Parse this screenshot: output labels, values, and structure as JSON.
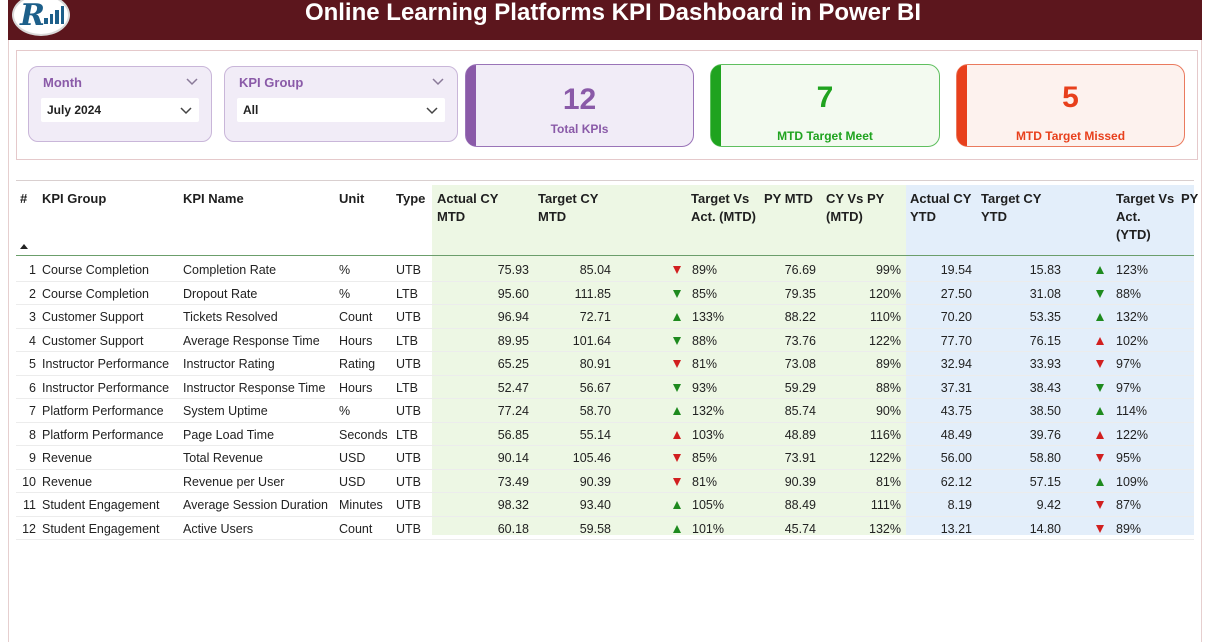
{
  "header": {
    "title": "Online Learning Platforms KPI Dashboard in Power BI",
    "logo_icon": "analytics-logo-icon"
  },
  "filters": {
    "month": {
      "label": "Month",
      "value": "July 2024"
    },
    "kpi_group": {
      "label": "KPI Group",
      "value": "All"
    }
  },
  "cards": {
    "total": {
      "value": "12",
      "caption": "Total KPIs",
      "color": "#8a5aa8"
    },
    "meet": {
      "value": "7",
      "caption": "MTD Target Meet",
      "color": "#1fa31f"
    },
    "missed": {
      "value": "5",
      "caption": "MTD Target Missed",
      "color": "#e8401c"
    }
  },
  "table": {
    "headers": {
      "num": "#",
      "group": "KPI Group",
      "name": "KPI Name",
      "unit": "Unit",
      "type": "Type",
      "actual_mtd": "Actual CY MTD",
      "target_mtd": "Target CY MTD",
      "tva_mtd": "Target Vs Act. (MTD)",
      "py_mtd": "PY MTD",
      "cyvspy_mtd": "CY Vs PY (MTD)",
      "actual_ytd": "Actual CY YTD",
      "target_ytd": "Target CY YTD",
      "tva_ytd": "Target Vs Act. (YTD)",
      "py_ytd": "PY"
    },
    "colors": {
      "up": "#1e8a1e",
      "down": "#d11f1f",
      "green_band": "#edf7e4",
      "blue_band": "#e3eefa"
    },
    "rows": [
      {
        "num": "1",
        "group": "Course Completion",
        "name": "Completion Rate",
        "unit": "%",
        "type": "UTB",
        "actual_mtd": "75.93",
        "target_mtd": "85.04",
        "mtd_dir": "down",
        "mtd_color": "down",
        "tva_mtd": "89%",
        "py_mtd": "76.69",
        "cyvspy_mtd": "99%",
        "actual_ytd": "19.54",
        "target_ytd": "15.83",
        "ytd_dir": "up",
        "ytd_color": "up",
        "tva_ytd": "123%"
      },
      {
        "num": "2",
        "group": "Course Completion",
        "name": "Dropout Rate",
        "unit": "%",
        "type": "LTB",
        "actual_mtd": "95.60",
        "target_mtd": "111.85",
        "mtd_dir": "down",
        "mtd_color": "up",
        "tva_mtd": "85%",
        "py_mtd": "79.35",
        "cyvspy_mtd": "120%",
        "actual_ytd": "27.50",
        "target_ytd": "31.08",
        "ytd_dir": "down",
        "ytd_color": "up",
        "tva_ytd": "88%"
      },
      {
        "num": "3",
        "group": "Customer Support",
        "name": "Tickets Resolved",
        "unit": "Count",
        "type": "UTB",
        "actual_mtd": "96.94",
        "target_mtd": "72.71",
        "mtd_dir": "up",
        "mtd_color": "up",
        "tva_mtd": "133%",
        "py_mtd": "88.22",
        "cyvspy_mtd": "110%",
        "actual_ytd": "70.20",
        "target_ytd": "53.35",
        "ytd_dir": "up",
        "ytd_color": "up",
        "tva_ytd": "132%"
      },
      {
        "num": "4",
        "group": "Customer Support",
        "name": "Average Response Time",
        "unit": "Hours",
        "type": "LTB",
        "actual_mtd": "89.95",
        "target_mtd": "101.64",
        "mtd_dir": "down",
        "mtd_color": "up",
        "tva_mtd": "88%",
        "py_mtd": "73.76",
        "cyvspy_mtd": "122%",
        "actual_ytd": "77.70",
        "target_ytd": "76.15",
        "ytd_dir": "up",
        "ytd_color": "down",
        "tva_ytd": "102%"
      },
      {
        "num": "5",
        "group": "Instructor Performance",
        "name": "Instructor Rating",
        "unit": "Rating",
        "type": "UTB",
        "actual_mtd": "65.25",
        "target_mtd": "80.91",
        "mtd_dir": "down",
        "mtd_color": "down",
        "tva_mtd": "81%",
        "py_mtd": "73.08",
        "cyvspy_mtd": "89%",
        "actual_ytd": "32.94",
        "target_ytd": "33.93",
        "ytd_dir": "down",
        "ytd_color": "down",
        "tva_ytd": "97%"
      },
      {
        "num": "6",
        "group": "Instructor Performance",
        "name": "Instructor Response Time",
        "unit": "Hours",
        "type": "LTB",
        "actual_mtd": "52.47",
        "target_mtd": "56.67",
        "mtd_dir": "down",
        "mtd_color": "up",
        "tva_mtd": "93%",
        "py_mtd": "59.29",
        "cyvspy_mtd": "88%",
        "actual_ytd": "37.31",
        "target_ytd": "38.43",
        "ytd_dir": "down",
        "ytd_color": "up",
        "tva_ytd": "97%"
      },
      {
        "num": "7",
        "group": "Platform Performance",
        "name": "System Uptime",
        "unit": "%",
        "type": "UTB",
        "actual_mtd": "77.24",
        "target_mtd": "58.70",
        "mtd_dir": "up",
        "mtd_color": "up",
        "tva_mtd": "132%",
        "py_mtd": "85.74",
        "cyvspy_mtd": "90%",
        "actual_ytd": "43.75",
        "target_ytd": "38.50",
        "ytd_dir": "up",
        "ytd_color": "up",
        "tva_ytd": "114%"
      },
      {
        "num": "8",
        "group": "Platform Performance",
        "name": "Page Load Time",
        "unit": "Seconds",
        "type": "LTB",
        "actual_mtd": "56.85",
        "target_mtd": "55.14",
        "mtd_dir": "up",
        "mtd_color": "down",
        "tva_mtd": "103%",
        "py_mtd": "48.89",
        "cyvspy_mtd": "116%",
        "actual_ytd": "48.49",
        "target_ytd": "39.76",
        "ytd_dir": "up",
        "ytd_color": "down",
        "tva_ytd": "122%"
      },
      {
        "num": "9",
        "group": "Revenue",
        "name": "Total Revenue",
        "unit": "USD",
        "type": "UTB",
        "actual_mtd": "90.14",
        "target_mtd": "105.46",
        "mtd_dir": "down",
        "mtd_color": "down",
        "tva_mtd": "85%",
        "py_mtd": "73.91",
        "cyvspy_mtd": "122%",
        "actual_ytd": "56.00",
        "target_ytd": "58.80",
        "ytd_dir": "down",
        "ytd_color": "down",
        "tva_ytd": "95%"
      },
      {
        "num": "10",
        "group": "Revenue",
        "name": "Revenue per User",
        "unit": "USD",
        "type": "UTB",
        "actual_mtd": "73.49",
        "target_mtd": "90.39",
        "mtd_dir": "down",
        "mtd_color": "down",
        "tva_mtd": "81%",
        "py_mtd": "90.39",
        "cyvspy_mtd": "81%",
        "actual_ytd": "62.12",
        "target_ytd": "57.15",
        "ytd_dir": "up",
        "ytd_color": "up",
        "tva_ytd": "109%"
      },
      {
        "num": "11",
        "group": "Student Engagement",
        "name": "Average Session Duration",
        "unit": "Minutes",
        "type": "UTB",
        "actual_mtd": "98.32",
        "target_mtd": "93.40",
        "mtd_dir": "up",
        "mtd_color": "up",
        "tva_mtd": "105%",
        "py_mtd": "88.49",
        "cyvspy_mtd": "111%",
        "actual_ytd": "8.19",
        "target_ytd": "9.42",
        "ytd_dir": "down",
        "ytd_color": "down",
        "tva_ytd": "87%"
      },
      {
        "num": "12",
        "group": "Student Engagement",
        "name": "Active Users",
        "unit": "Count",
        "type": "UTB",
        "actual_mtd": "60.18",
        "target_mtd": "59.58",
        "mtd_dir": "up",
        "mtd_color": "up",
        "tva_mtd": "101%",
        "py_mtd": "45.74",
        "cyvspy_mtd": "132%",
        "actual_ytd": "13.21",
        "target_ytd": "14.80",
        "ytd_dir": "down",
        "ytd_color": "down",
        "tva_ytd": "89%"
      }
    ]
  }
}
